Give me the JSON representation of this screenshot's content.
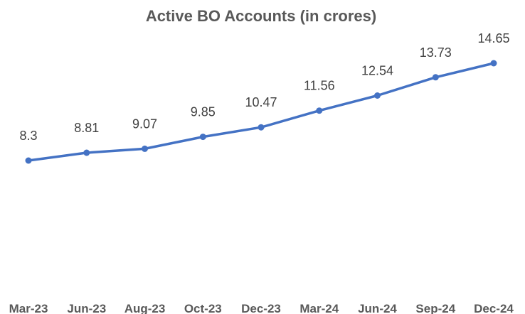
{
  "chart_data": {
    "type": "line",
    "title": "Active BO Accounts (in crores)",
    "xlabel": "",
    "ylabel": "",
    "categories": [
      "Mar-23",
      "Jun-23",
      "Aug-23",
      "Oct-23",
      "Dec-23",
      "Mar-24",
      "Jun-24",
      "Sep-24",
      "Dec-24"
    ],
    "series": [
      {
        "values": [
          8.3,
          8.81,
          9.07,
          9.85,
          10.47,
          11.56,
          12.54,
          13.73,
          14.65
        ],
        "labels": [
          "8.3",
          "8.81",
          "9.07",
          "9.85",
          "10.47",
          "11.56",
          "12.54",
          "13.73",
          "14.65"
        ],
        "color": "#4472C4"
      }
    ],
    "ylim": [
      0,
      16
    ],
    "grid": false,
    "legend": "none",
    "data_labels": true
  }
}
